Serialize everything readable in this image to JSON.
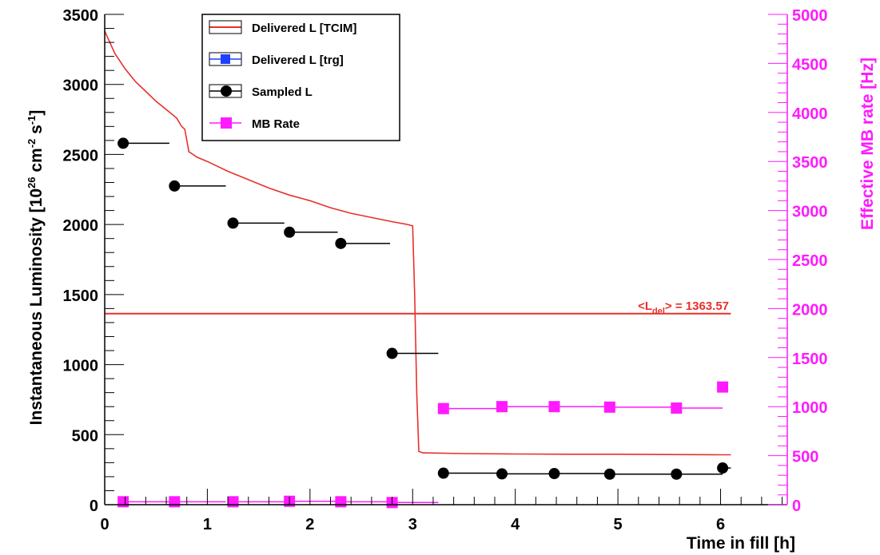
{
  "chart_data": {
    "type": "line",
    "title": "",
    "xlabel": "Time in fill [h]",
    "ylabel": "Instantaneous Luminosity [10^26 cm^-2 s^-1]",
    "ylabel_parts": {
      "prefix": "Instantaneous Luminosity [10",
      "exp1": "26",
      "mid1": " cm",
      "exp2": "-2",
      "mid2": " s",
      "exp3": "-1",
      "suffix": "]"
    },
    "y2label": "Effective MB rate [Hz]",
    "xlim": [
      0,
      6.65
    ],
    "ylim": [
      0,
      3500
    ],
    "y2lim": [
      0,
      5000
    ],
    "grid": false,
    "legend_position": "top-left",
    "x_ticks": [
      "0",
      "1",
      "2",
      "3",
      "4",
      "5",
      "6"
    ],
    "y_ticks": [
      "0",
      "500",
      "1000",
      "1500",
      "2000",
      "2500",
      "3000",
      "3500"
    ],
    "y2_ticks": [
      "0",
      "500",
      "1000",
      "1500",
      "2000",
      "2500",
      "3000",
      "3500",
      "4000",
      "4500",
      "5000"
    ],
    "annotation": {
      "prefix": "<L",
      "sub": "del",
      "suffix": "> = 1363.57"
    },
    "average_line": 1363.57,
    "colors": {
      "delivered": "#e8302a",
      "trg": "#1f3fff",
      "sampled": "#000000",
      "mb": "#ff1aff",
      "right_axis": "#ff1aff"
    },
    "series": [
      {
        "name": "Delivered L [TCIM]",
        "kind": "line",
        "axis": "left",
        "x": [
          0,
          0.05,
          0.1,
          0.2,
          0.3,
          0.4,
          0.5,
          0.6,
          0.7,
          0.75,
          0.78,
          0.82,
          0.9,
          1.0,
          1.2,
          1.4,
          1.6,
          1.8,
          2.0,
          2.2,
          2.4,
          2.6,
          2.8,
          2.95,
          3.0,
          3.02,
          3.04,
          3.06,
          3.1,
          3.5,
          4.0,
          4.5,
          5.0,
          5.5,
          6.0,
          6.1
        ],
        "y": [
          3380,
          3300,
          3220,
          3110,
          3020,
          2950,
          2880,
          2820,
          2760,
          2700,
          2680,
          2520,
          2480,
          2450,
          2380,
          2320,
          2260,
          2210,
          2170,
          2120,
          2080,
          2050,
          2020,
          2000,
          1990,
          1500,
          800,
          380,
          370,
          365,
          362,
          360,
          360,
          358,
          356,
          356
        ]
      },
      {
        "name": "Delivered L [trg]",
        "kind": "marker",
        "axis": "left",
        "x": [],
        "y": []
      },
      {
        "name": "Sampled L",
        "kind": "marker",
        "axis": "left",
        "x": [
          0.18,
          0.68,
          1.25,
          1.8,
          2.3,
          2.8,
          3.3,
          3.87,
          4.38,
          4.92,
          5.57,
          6.02
        ],
        "y": [
          2580,
          2275,
          2010,
          1945,
          1865,
          1080,
          225,
          220,
          222,
          218,
          218,
          262
        ],
        "xerr_right": [
          0.45,
          0.5,
          0.5,
          0.47,
          0.48,
          0.45,
          0.57,
          0.51,
          0.54,
          0.65,
          0.45,
          0.08
        ]
      },
      {
        "name": "MB Rate",
        "kind": "marker",
        "axis": "right",
        "x": [
          0.18,
          0.68,
          1.25,
          1.8,
          2.3,
          2.8,
          3.3,
          3.87,
          4.38,
          4.92,
          5.57,
          6.02
        ],
        "y": [
          30,
          30,
          30,
          35,
          30,
          22,
          980,
          1000,
          1000,
          995,
          985,
          1200
        ],
        "xerr_right": [
          0.45,
          0.5,
          0.5,
          0.47,
          0.48,
          0.45,
          0.57,
          0.51,
          0.54,
          0.65,
          0.45,
          0.0
        ]
      }
    ]
  }
}
